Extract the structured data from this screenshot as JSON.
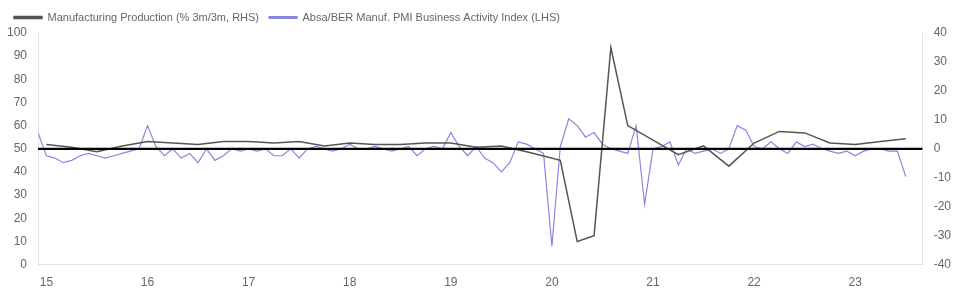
{
  "chart_data": {
    "type": "line",
    "xlim": [
      14.917,
      23.667
    ],
    "xticks": [
      15,
      16,
      17,
      18,
      19,
      20,
      21,
      22,
      23
    ],
    "ylim": [
      0,
      100
    ],
    "yticks": [
      0,
      10,
      20,
      30,
      40,
      50,
      60,
      70,
      80,
      90,
      100
    ],
    "y2lim": [
      -40,
      40
    ],
    "y2ticks": [
      -40,
      -30,
      -20,
      -10,
      0,
      10,
      20,
      30,
      40
    ],
    "grid": false,
    "legend": "upper left",
    "hlines": [
      {
        "value": 50,
        "color": "#000000"
      }
    ],
    "series": [
      {
        "name": "Absa/BER Manuf. PMI Business Activity Index (LHS)",
        "color": "#8888dd",
        "axis": "y",
        "x": [
          14.917,
          15.0,
          15.083,
          15.167,
          15.25,
          15.333,
          15.417,
          15.5,
          15.583,
          15.667,
          15.75,
          15.833,
          15.917,
          16.0,
          16.083,
          16.167,
          16.25,
          16.333,
          16.417,
          16.5,
          16.583,
          16.667,
          16.75,
          16.833,
          16.917,
          17.0,
          17.083,
          17.167,
          17.25,
          17.333,
          17.417,
          17.5,
          17.583,
          17.667,
          17.75,
          17.833,
          17.917,
          18.0,
          18.083,
          18.167,
          18.25,
          18.333,
          18.417,
          18.5,
          18.583,
          18.667,
          18.75,
          18.833,
          18.917,
          19.0,
          19.083,
          19.167,
          19.25,
          19.333,
          19.417,
          19.5,
          19.583,
          19.667,
          19.75,
          19.833,
          19.917,
          20.0,
          20.083,
          20.167,
          20.25,
          20.333,
          20.417,
          20.5,
          20.583,
          20.667,
          20.75,
          20.833,
          20.917,
          21.0,
          21.083,
          21.167,
          21.25,
          21.333,
          21.417,
          21.5,
          21.583,
          21.667,
          21.75,
          21.833,
          21.917,
          22.0,
          22.083,
          22.167,
          22.25,
          22.333,
          22.417,
          22.5,
          22.583,
          22.667,
          22.75,
          22.833,
          22.917,
          23.0,
          23.083,
          23.167,
          23.25,
          23.333,
          23.417,
          23.5
        ],
        "values": [
          57,
          47,
          46,
          44,
          45,
          47,
          48,
          47,
          46,
          47,
          48,
          49,
          50,
          60,
          51,
          47,
          50,
          46,
          48,
          44,
          50,
          45,
          47,
          50,
          49,
          50,
          49,
          50,
          47,
          47,
          50,
          46,
          50,
          51,
          50,
          49,
          50,
          52,
          50,
          50,
          51,
          50,
          49,
          50,
          51,
          47,
          50,
          51,
          50,
          57,
          51,
          47,
          51,
          46,
          44,
          40,
          44,
          53,
          52,
          50,
          48,
          8,
          51,
          63,
          60,
          55,
          57,
          52,
          50,
          49,
          48,
          60,
          26,
          50,
          51,
          53,
          43,
          50,
          48,
          49,
          50,
          48,
          50,
          60,
          58,
          51,
          50,
          53,
          50,
          48,
          53,
          51,
          52,
          50,
          49,
          48,
          49,
          47,
          49,
          50,
          50,
          49,
          49,
          38
        ]
      },
      {
        "name": "Manufacturing Production (% 3m/3m, RHS)",
        "color": "#555555",
        "axis": "y2",
        "x": [
          15.0,
          15.25,
          15.5,
          15.75,
          16.0,
          16.25,
          16.5,
          16.75,
          17.0,
          17.25,
          17.5,
          17.75,
          18.0,
          18.25,
          18.5,
          18.75,
          19.0,
          19.25,
          19.5,
          19.75,
          19.917,
          20.083,
          20.25,
          20.417,
          20.583,
          20.75,
          21.0,
          21.25,
          21.5,
          21.75,
          22.0,
          22.25,
          22.5,
          22.75,
          23.0,
          23.25,
          23.5
        ],
        "values": [
          1.5,
          0.5,
          -1.0,
          1.0,
          2.5,
          2.0,
          1.5,
          2.5,
          2.5,
          2.0,
          2.5,
          1.0,
          2.0,
          1.5,
          1.5,
          2.0,
          2.0,
          0.5,
          1.0,
          -1.0,
          -2.5,
          -4.0,
          -32.0,
          -30.0,
          35.0,
          8.0,
          3.0,
          -2.0,
          1.0,
          -6.0,
          2.0,
          6.0,
          5.5,
          2.0,
          1.5,
          2.5,
          3.5
        ]
      }
    ]
  }
}
